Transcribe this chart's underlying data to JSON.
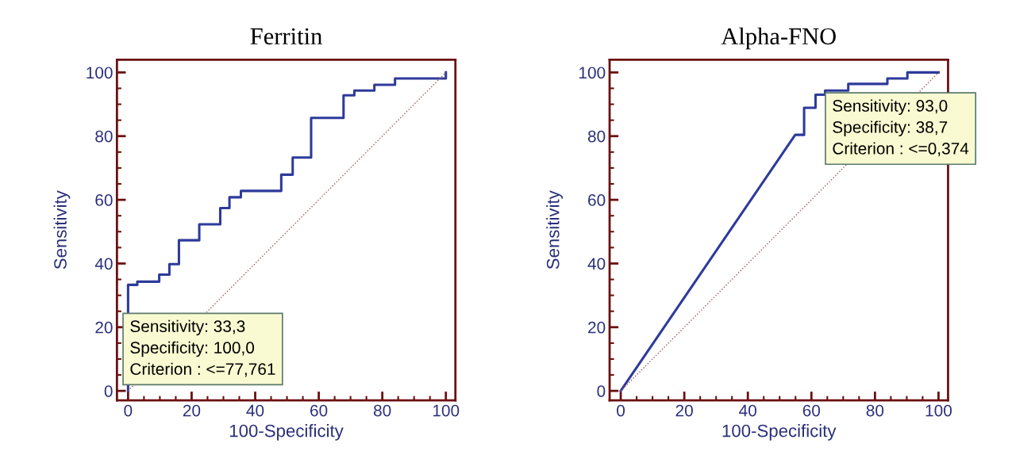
{
  "chart_data": [
    {
      "type": "line",
      "title": "Ferritin",
      "xlabel": "100-Specificity",
      "ylabel": "Sensitivity",
      "xlim": [
        -3.5,
        103
      ],
      "ylim": [
        -3,
        104
      ],
      "xticks": [
        0,
        20,
        40,
        60,
        80,
        100
      ],
      "yticks": [
        0,
        20,
        40,
        60,
        80,
        100
      ],
      "grid": false,
      "legend": false,
      "marker": "none",
      "series": [
        {
          "color": "#2e3a9a",
          "line_style": "solid",
          "x": [
            0,
            0,
            2.9,
            2.9,
            9.8,
            9.8,
            13.0,
            13.0,
            16.0,
            16.0,
            22.4,
            22.4,
            29.0,
            29.0,
            31.9,
            31.9,
            35.5,
            35.5,
            48.2,
            48.2,
            51.8,
            51.8,
            57.6,
            57.6,
            67.8,
            67.8,
            71.2,
            71.2,
            77.5,
            77.5,
            84.0,
            84.0,
            100,
            100
          ],
          "values": [
            0,
            33.3,
            33.3,
            34.3,
            34.3,
            36.5,
            36.5,
            39.8,
            39.8,
            47.3,
            47.3,
            52.3,
            52.3,
            57.4,
            57.4,
            60.8,
            60.8,
            62.8,
            62.8,
            67.9,
            67.9,
            73.3,
            73.3,
            85.7,
            85.7,
            92.8,
            92.8,
            94.3,
            94.3,
            96.1,
            96.1,
            98.1,
            98.1,
            100
          ]
        },
        {
          "type": "line",
          "color": "#a05a5a",
          "line_style": "dotted",
          "x": [
            0,
            100
          ],
          "values": [
            0,
            100
          ]
        }
      ],
      "annotations": [
        "Sensitivity: 33,3\nSpecificity: 100,0\nCriterion : <=77,761"
      ]
    },
    {
      "type": "line",
      "title": "Alpha-FNO",
      "xlabel": "100-Specificity",
      "ylabel": "Sensitivity",
      "xlim": [
        -3.5,
        103
      ],
      "ylim": [
        -3,
        104
      ],
      "xticks": [
        0,
        20,
        40,
        60,
        80,
        100
      ],
      "yticks": [
        0,
        20,
        40,
        60,
        80,
        100
      ],
      "grid": false,
      "legend": false,
      "marker": "none",
      "series": [
        {
          "color": "#2e3a9a",
          "line_style": "solid",
          "x": [
            0,
            54.9,
            57.7,
            57.7,
            61.3,
            61.3,
            64.3,
            64.3,
            71.6,
            71.6,
            83.9,
            83.9,
            90.2,
            90.2,
            100
          ],
          "values": [
            0,
            80.4,
            80.4,
            88.9,
            88.9,
            93.0,
            93.0,
            94.3,
            94.3,
            96.4,
            96.4,
            98.1,
            98.1,
            100,
            100
          ]
        },
        {
          "type": "line",
          "color": "#a05a5a",
          "line_style": "dotted",
          "x": [
            0,
            100
          ],
          "values": [
            0,
            100
          ]
        }
      ],
      "annotations": [
        "Sensitivity: 93,0\nSpecificity: 38,7\nCriterion : <=0,374"
      ]
    }
  ]
}
